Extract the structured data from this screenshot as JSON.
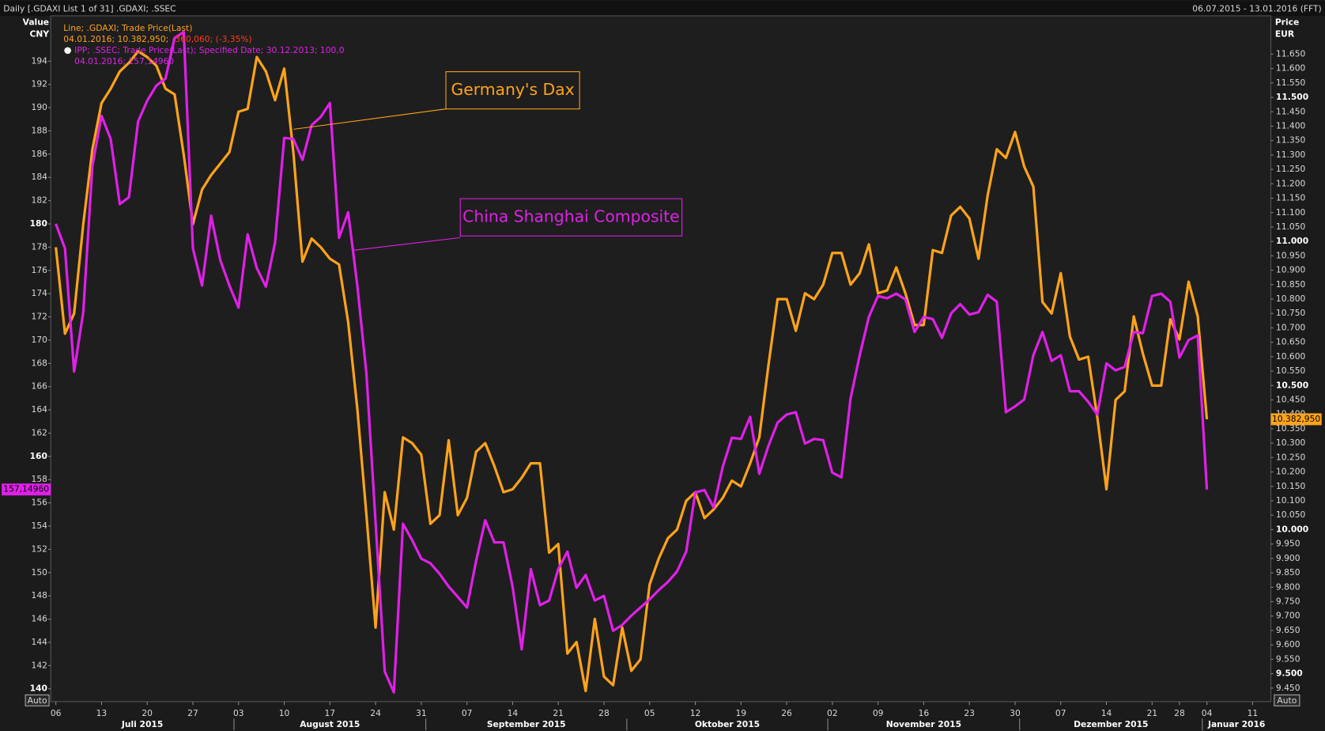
{
  "chart_data": {
    "type": "line",
    "title": "Daily [.GDAXI List 1 of 31] .GDAXI; .SSEC",
    "date_range": "06.07.2015 - 13.01.2016 (FFT)",
    "y_label": [
      "Value",
      "CNY"
    ],
    "y2_label": [
      "Price",
      "EUR"
    ],
    "auto_label": "Auto",
    "legend_lines": [
      {
        "text": "Line; .GDAXI; Trade Price(Last)",
        "color": "#ffa31a"
      },
      {
        "text": "04.01.2016; 10.382,950;",
        "extra": "-360,060; (-3,35%)",
        "color": "#ffa31a",
        "extra_color": "#ff3b1f"
      },
      {
        "text": "IPP; .SSEC; Trade Price(Last); Specified Date; 30.12.2013; 100,0",
        "color": "#e020e8"
      },
      {
        "text": "04.01.2016; 157,14960",
        "color": "#e020e8"
      }
    ],
    "annotations": [
      "Germany's Dax",
      "China Shanghai Composite"
    ],
    "x": [
      "2015-07-06",
      "2015-07-07",
      "2015-07-08",
      "2015-07-09",
      "2015-07-10",
      "2015-07-13",
      "2015-07-14",
      "2015-07-15",
      "2015-07-16",
      "2015-07-17",
      "2015-07-20",
      "2015-07-21",
      "2015-07-22",
      "2015-07-23",
      "2015-07-24",
      "2015-07-27",
      "2015-07-28",
      "2015-07-29",
      "2015-07-30",
      "2015-07-31",
      "2015-08-03",
      "2015-08-04",
      "2015-08-05",
      "2015-08-06",
      "2015-08-07",
      "2015-08-10",
      "2015-08-11",
      "2015-08-12",
      "2015-08-13",
      "2015-08-14",
      "2015-08-17",
      "2015-08-18",
      "2015-08-19",
      "2015-08-20",
      "2015-08-21",
      "2015-08-24",
      "2015-08-25",
      "2015-08-26",
      "2015-08-27",
      "2015-08-28",
      "2015-08-31",
      "2015-09-01",
      "2015-09-02",
      "2015-09-03",
      "2015-09-04",
      "2015-09-07",
      "2015-09-08",
      "2015-09-09",
      "2015-09-10",
      "2015-09-11",
      "2015-09-14",
      "2015-09-15",
      "2015-09-16",
      "2015-09-17",
      "2015-09-18",
      "2015-09-21",
      "2015-09-22",
      "2015-09-23",
      "2015-09-24",
      "2015-09-25",
      "2015-09-28",
      "2015-09-29",
      "2015-09-30",
      "2015-10-01",
      "2015-10-02",
      "2015-10-05",
      "2015-10-06",
      "2015-10-07",
      "2015-10-08",
      "2015-10-09",
      "2015-10-12",
      "2015-10-13",
      "2015-10-14",
      "2015-10-15",
      "2015-10-16",
      "2015-10-19",
      "2015-10-20",
      "2015-10-21",
      "2015-10-22",
      "2015-10-23",
      "2015-10-26",
      "2015-10-27",
      "2015-10-28",
      "2015-10-29",
      "2015-10-30",
      "2015-11-02",
      "2015-11-03",
      "2015-11-04",
      "2015-11-05",
      "2015-11-06",
      "2015-11-09",
      "2015-11-10",
      "2015-11-11",
      "2015-11-12",
      "2015-11-13",
      "2015-11-16",
      "2015-11-17",
      "2015-11-18",
      "2015-11-19",
      "2015-11-20",
      "2015-11-23",
      "2015-11-24",
      "2015-11-25",
      "2015-11-26",
      "2015-11-27",
      "2015-11-30",
      "2015-12-01",
      "2015-12-02",
      "2015-12-03",
      "2015-12-04",
      "2015-12-07",
      "2015-12-08",
      "2015-12-09",
      "2015-12-10",
      "2015-12-11",
      "2015-12-14",
      "2015-12-15",
      "2015-12-16",
      "2015-12-17",
      "2015-12-18",
      "2015-12-21",
      "2015-12-22",
      "2015-12-23",
      "2015-12-28",
      "2015-12-29",
      "2015-12-30",
      "2016-01-04"
    ],
    "series": [
      {
        "name": ".GDAXI",
        "color": "#ffa31a",
        "axis": "y2",
        "last_label": "10.382,950",
        "values": [
          10980,
          10680,
          10750,
          11060,
          11320,
          11480,
          11530,
          11590,
          11620,
          11660,
          11640,
          11610,
          11530,
          11510,
          11300,
          11060,
          11180,
          11230,
          11270,
          11310,
          11450,
          11460,
          11640,
          11590,
          11490,
          11600,
          11310,
          10930,
          11010,
          10980,
          10940,
          10920,
          10720,
          10420,
          10050,
          9660,
          10130,
          10000,
          10320,
          10300,
          10260,
          10020,
          10050,
          10310,
          10050,
          10110,
          10270,
          10300,
          10220,
          10130,
          10140,
          10180,
          10230,
          10230,
          9920,
          9950,
          9570,
          9610,
          9440,
          9690,
          9490,
          9460,
          9660,
          9510,
          9550,
          9810,
          9900,
          9970,
          10000,
          10100,
          10130,
          10040,
          10070,
          10110,
          10170,
          10150,
          10230,
          10320,
          10570,
          10800,
          10800,
          10690,
          10820,
          10800,
          10850,
          10960,
          10960,
          10850,
          10890,
          10990,
          10820,
          10830,
          10910,
          10820,
          10710,
          10710,
          10970,
          10960,
          11090,
          11120,
          11080,
          10940,
          11160,
          11320,
          11290,
          11380,
          11260,
          11190,
          10790,
          10750,
          10890,
          10670,
          10590,
          10600,
          10390,
          10140,
          10450,
          10480,
          10740,
          10610,
          10500,
          10500,
          10730,
          10660,
          10860,
          10740,
          10382.95
        ]
      },
      {
        "name": ".SSEC",
        "color": "#e020e8",
        "axis": "y",
        "last_label": "157,14960",
        "values": [
          180.0,
          177.9,
          167.3,
          172.4,
          185.0,
          189.3,
          187.3,
          181.7,
          182.3,
          188.8,
          190.6,
          191.9,
          192.5,
          196.0,
          196.5,
          177.9,
          174.7,
          180.7,
          176.9,
          174.7,
          172.8,
          179.1,
          176.2,
          174.6,
          178.4,
          187.4,
          187.3,
          185.5,
          188.5,
          189.2,
          190.4,
          178.8,
          181.0,
          174.7,
          167.1,
          154.3,
          141.5,
          139.7,
          154.2,
          152.8,
          151.2,
          150.8,
          149.9,
          148.8,
          147.9,
          147.0,
          151.0,
          154.5,
          152.6,
          152.6,
          148.8,
          143.4,
          150.3,
          147.2,
          147.6,
          150.3,
          151.8,
          148.7,
          149.8,
          147.6,
          148.0,
          145.0,
          145.5,
          146.3,
          147.0,
          147.7,
          148.5,
          149.2,
          150.1,
          151.8,
          156.9,
          157.1,
          155.6,
          159.1,
          161.6,
          161.5,
          163.4,
          158.5,
          160.9,
          162.9,
          163.6,
          163.8,
          161.1,
          161.5,
          161.4,
          158.6,
          158.2,
          165.0,
          168.7,
          172.0,
          173.8,
          173.6,
          174.0,
          173.5,
          170.7,
          172.0,
          171.8,
          170.2,
          172.3,
          173.1,
          172.2,
          172.4,
          173.9,
          173.3,
          163.8,
          164.3,
          164.9,
          168.7,
          170.7,
          168.2,
          168.7,
          165.6,
          165.6,
          164.7,
          163.6,
          168.0,
          167.4,
          167.7,
          170.7,
          170.6,
          173.8,
          174.0,
          173.3,
          168.5,
          170.0,
          170.4,
          157.1496
        ]
      }
    ],
    "xlim": [
      "2015-07-06",
      "2016-01-13"
    ],
    "xticks": [
      {
        "value": "2015-07-06",
        "label": "06"
      },
      {
        "value": "2015-07-13",
        "label": "13"
      },
      {
        "value": "2015-07-20",
        "label": "20"
      },
      {
        "value": "2015-07-27",
        "label": "27"
      },
      {
        "value": "2015-08-03",
        "label": "03"
      },
      {
        "value": "2015-08-10",
        "label": "10"
      },
      {
        "value": "2015-08-17",
        "label": "17"
      },
      {
        "value": "2015-08-24",
        "label": "24"
      },
      {
        "value": "2015-08-31",
        "label": "31"
      },
      {
        "value": "2015-09-07",
        "label": "07"
      },
      {
        "value": "2015-09-14",
        "label": "14"
      },
      {
        "value": "2015-09-21",
        "label": "21"
      },
      {
        "value": "2015-09-28",
        "label": "28"
      },
      {
        "value": "2015-10-05",
        "label": "05"
      },
      {
        "value": "2015-10-12",
        "label": "12"
      },
      {
        "value": "2015-10-19",
        "label": "19"
      },
      {
        "value": "2015-10-26",
        "label": "26"
      },
      {
        "value": "2015-11-02",
        "label": "02"
      },
      {
        "value": "2015-11-09",
        "label": "09"
      },
      {
        "value": "2015-11-16",
        "label": "16"
      },
      {
        "value": "2015-11-23",
        "label": "23"
      },
      {
        "value": "2015-11-30",
        "label": "30"
      },
      {
        "value": "2015-12-07",
        "label": "07"
      },
      {
        "value": "2015-12-14",
        "label": "14"
      },
      {
        "value": "2015-12-21",
        "label": "21"
      },
      {
        "value": "2015-12-28",
        "label": "28"
      },
      {
        "value": "2016-01-04",
        "label": "04"
      },
      {
        "value": "2016-01-11",
        "label": "11"
      }
    ],
    "months": [
      {
        "value": "2015-07-01",
        "label": "Juli 2015"
      },
      {
        "value": "2015-08-01",
        "label": "August 2015"
      },
      {
        "value": "2015-09-01",
        "label": "September 2015"
      },
      {
        "value": "2015-10-01",
        "label": "Oktober 2015"
      },
      {
        "value": "2015-11-01",
        "label": "November 2015"
      },
      {
        "value": "2015-12-01",
        "label": "Dezember 2015"
      },
      {
        "value": "2016-01-01",
        "label": "Januar 2016"
      }
    ],
    "ylim": [
      138.9,
      197.9
    ],
    "yticks": [
      140,
      142,
      144,
      146,
      148,
      150,
      152,
      154,
      156,
      158,
      160,
      162,
      164,
      166,
      168,
      170,
      172,
      174,
      176,
      178,
      180,
      182,
      184,
      186,
      188,
      190,
      192,
      194
    ],
    "y2lim": [
      9403,
      11783
    ],
    "y2ticks": [
      {
        "value": 9450,
        "label": "9.450"
      },
      {
        "value": 9500,
        "label": "9.500"
      },
      {
        "value": 9550,
        "label": "9.550"
      },
      {
        "value": 9600,
        "label": "9.600"
      },
      {
        "value": 9650,
        "label": "9.650"
      },
      {
        "value": 9700,
        "label": "9.700"
      },
      {
        "value": 9750,
        "label": "9.750"
      },
      {
        "value": 9800,
        "label": "9.800"
      },
      {
        "value": 9850,
        "label": "9.850"
      },
      {
        "value": 9900,
        "label": "9.900"
      },
      {
        "value": 9950,
        "label": "9.950"
      },
      {
        "value": 10000,
        "label": "10.000"
      },
      {
        "value": 10050,
        "label": "10.050"
      },
      {
        "value": 10100,
        "label": "10.100"
      },
      {
        "value": 10150,
        "label": "10.150"
      },
      {
        "value": 10200,
        "label": "10.200"
      },
      {
        "value": 10250,
        "label": "10.250"
      },
      {
        "value": 10300,
        "label": "10.300"
      },
      {
        "value": 10350,
        "label": "10.350"
      },
      {
        "value": 10400,
        "label": "10.400"
      },
      {
        "value": 10450,
        "label": "10.450"
      },
      {
        "value": 10500,
        "label": "10.500"
      },
      {
        "value": 10550,
        "label": "10.550"
      },
      {
        "value": 10600,
        "label": "10.600"
      },
      {
        "value": 10650,
        "label": "10.650"
      },
      {
        "value": 10700,
        "label": "10.700"
      },
      {
        "value": 10750,
        "label": "10.750"
      },
      {
        "value": 10800,
        "label": "10.800"
      },
      {
        "value": 10850,
        "label": "10.850"
      },
      {
        "value": 10900,
        "label": "10.900"
      },
      {
        "value": 10950,
        "label": "10.950"
      },
      {
        "value": 11000,
        "label": "11.000"
      },
      {
        "value": 11050,
        "label": "11.050"
      },
      {
        "value": 11100,
        "label": "11.100"
      },
      {
        "value": 11150,
        "label": "11.150"
      },
      {
        "value": 11200,
        "label": "11.200"
      },
      {
        "value": 11250,
        "label": "11.250"
      },
      {
        "value": 11300,
        "label": "11.300"
      },
      {
        "value": 11350,
        "label": "11.350"
      },
      {
        "value": 11400,
        "label": "11.400"
      },
      {
        "value": 11450,
        "label": "11.450"
      },
      {
        "value": 11500,
        "label": "11.500"
      },
      {
        "value": 11550,
        "label": "11.550"
      },
      {
        "value": 11600,
        "label": "11.600"
      },
      {
        "value": 11650,
        "label": "11.650"
      }
    ],
    "grid": false
  }
}
